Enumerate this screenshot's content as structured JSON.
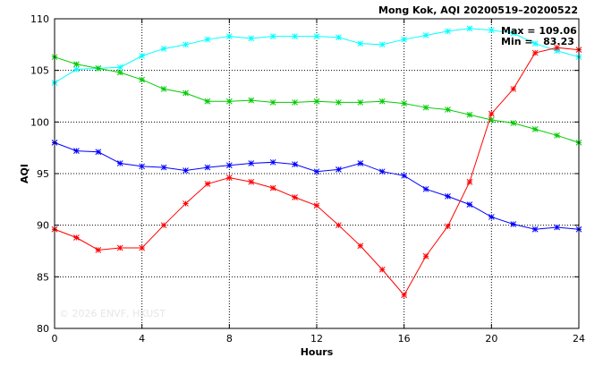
{
  "chart_data": {
    "type": "line",
    "title": "Mong Kok, AQI 20200519–20200522",
    "xlabel": "Hours",
    "ylabel": "AQI",
    "xlim": [
      0,
      24
    ],
    "ylim": [
      80,
      110
    ],
    "xticks": [
      0,
      4,
      8,
      12,
      16,
      20,
      24
    ],
    "yticks": [
      80,
      85,
      90,
      95,
      100,
      105,
      110
    ],
    "grid": true,
    "annotations": {
      "max_text": "Max = 109.06",
      "min_text": "Min =   83.23"
    },
    "watermark": "© 2026 ENVF, HKUST",
    "x": [
      0,
      1,
      2,
      3,
      4,
      5,
      6,
      7,
      8,
      9,
      10,
      11,
      12,
      13,
      14,
      15,
      16,
      17,
      18,
      19,
      20,
      21,
      22,
      23,
      24
    ],
    "series": [
      {
        "color": "#00ffff",
        "values": [
          103.8,
          105.1,
          105.2,
          105.3,
          106.4,
          107.1,
          107.5,
          108.0,
          108.3,
          108.1,
          108.3,
          108.3,
          108.3,
          108.2,
          107.6,
          107.5,
          108.0,
          108.4,
          108.8,
          109.06,
          108.9,
          108.6,
          107.6,
          106.9,
          106.3
        ]
      },
      {
        "color": "#00cc00",
        "values": [
          106.3,
          105.6,
          105.2,
          104.8,
          104.1,
          103.2,
          102.8,
          102.0,
          102.0,
          102.1,
          101.9,
          101.9,
          102.0,
          101.9,
          101.9,
          102.0,
          101.8,
          101.4,
          101.2,
          100.7,
          100.2,
          99.9,
          99.3,
          98.7,
          98.0
        ]
      },
      {
        "color": "#0000ff",
        "values": [
          98.0,
          97.2,
          97.1,
          96.0,
          95.7,
          95.6,
          95.3,
          95.6,
          95.8,
          96.0,
          96.1,
          95.9,
          95.2,
          95.4,
          96.0,
          95.2,
          94.8,
          93.5,
          92.8,
          92.0,
          90.8,
          90.1,
          89.6,
          89.8,
          89.6
        ]
      },
      {
        "color": "#ff0000",
        "values": [
          89.6,
          88.8,
          87.6,
          87.8,
          87.8,
          90.0,
          92.1,
          94.0,
          94.6,
          94.2,
          93.6,
          92.7,
          91.9,
          90.0,
          88.0,
          85.7,
          83.23,
          87.0,
          89.9,
          94.2,
          100.8,
          103.2,
          106.7,
          107.2,
          107.0
        ]
      }
    ]
  }
}
